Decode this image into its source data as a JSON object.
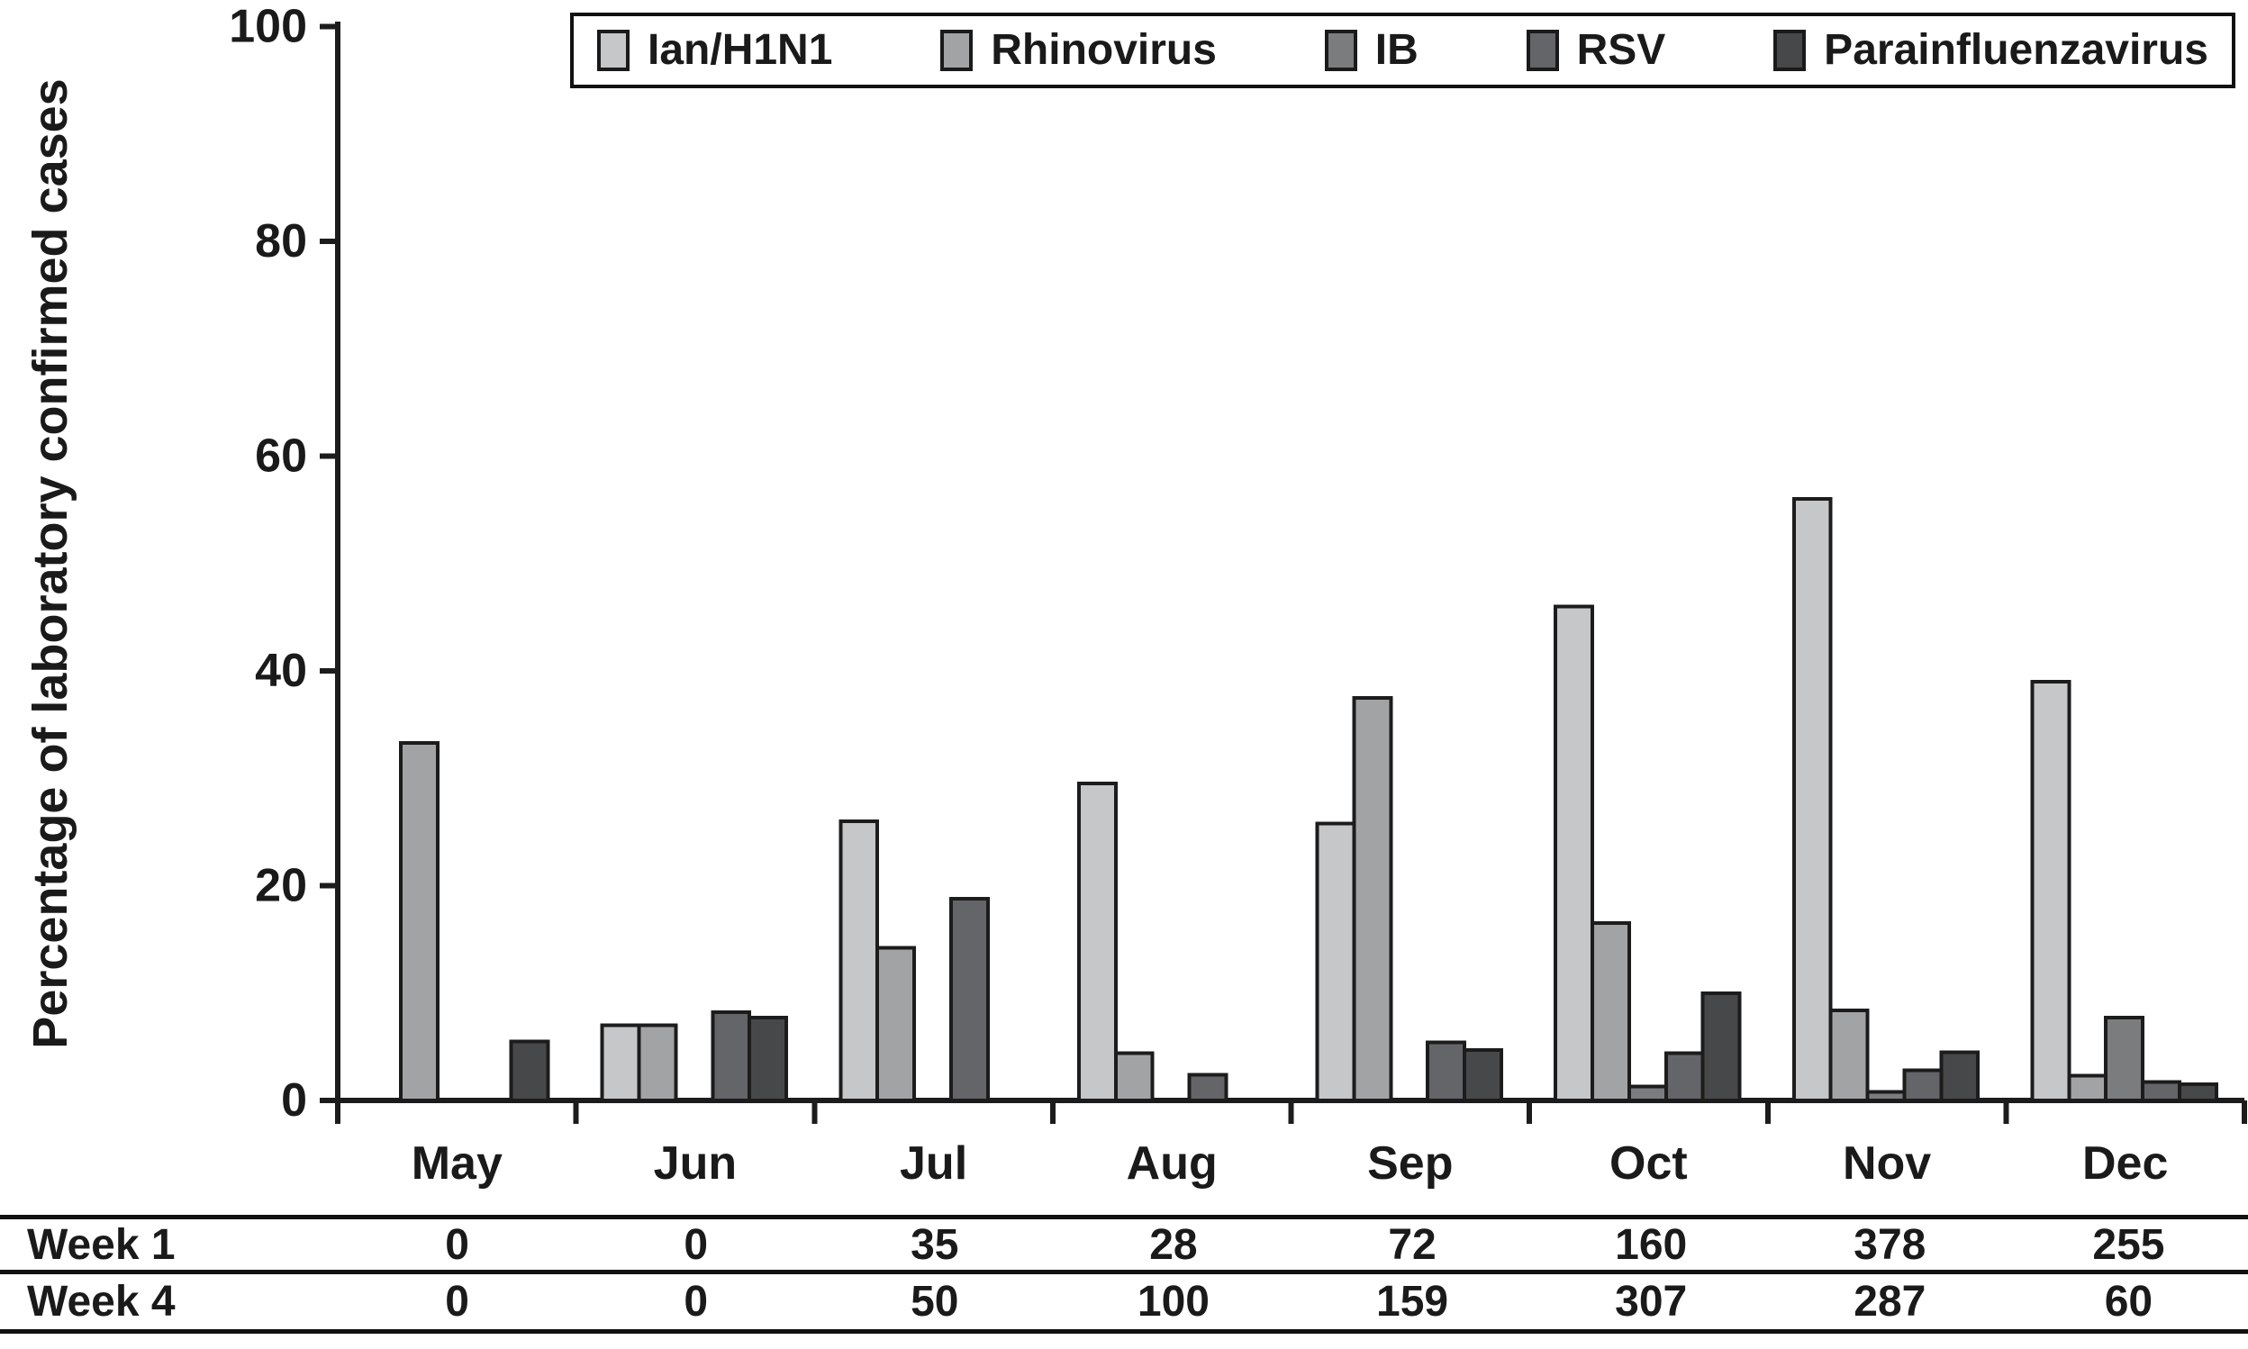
{
  "chart_data": {
    "type": "bar",
    "categories": [
      "May",
      "Jun",
      "Jul",
      "Aug",
      "Sep",
      "Oct",
      "Nov",
      "Dec"
    ],
    "series": [
      {
        "name": "Ian/H1N1",
        "color": "#c6c7c9",
        "values": [
          0,
          7,
          26,
          29.5,
          25.8,
          46,
          56,
          39
        ]
      },
      {
        "name": "Rhinovirus",
        "color": "#a2a3a5",
        "values": [
          33.3,
          7,
          14.2,
          4.4,
          37.5,
          16.5,
          8.4,
          2.3
        ]
      },
      {
        "name": "IB",
        "color": "#7b7c7e",
        "values": [
          0,
          0,
          0,
          0,
          0,
          1.3,
          0.8,
          7.7
        ]
      },
      {
        "name": "RSV",
        "color": "#646568",
        "values": [
          0,
          8.2,
          18.8,
          2.4,
          5.4,
          4.4,
          2.8,
          1.7
        ]
      },
      {
        "name": "Parainfluenzavirus",
        "color": "#474849",
        "values": [
          5.5,
          7.7,
          0,
          0,
          4.7,
          10,
          4.5,
          1.5
        ]
      }
    ],
    "title": "",
    "xlabel": "",
    "ylabel": "Percentage of laboratory confirmed cases",
    "ylim": [
      0,
      100
    ],
    "yticks": [
      0,
      20,
      40,
      60,
      80,
      100
    ],
    "grid": false,
    "legend_position": "top",
    "axis_color": "#1c1c1c",
    "bar_stroke": "#1c1c1c"
  },
  "table": {
    "rows": [
      {
        "label": "Week 1",
        "values": [
          "0",
          "0",
          "35",
          "28",
          "72",
          "160",
          "378",
          "255"
        ]
      },
      {
        "label": "Week 4",
        "values": [
          "0",
          "0",
          "50",
          "100",
          "159",
          "307",
          "287",
          "60"
        ]
      }
    ]
  }
}
